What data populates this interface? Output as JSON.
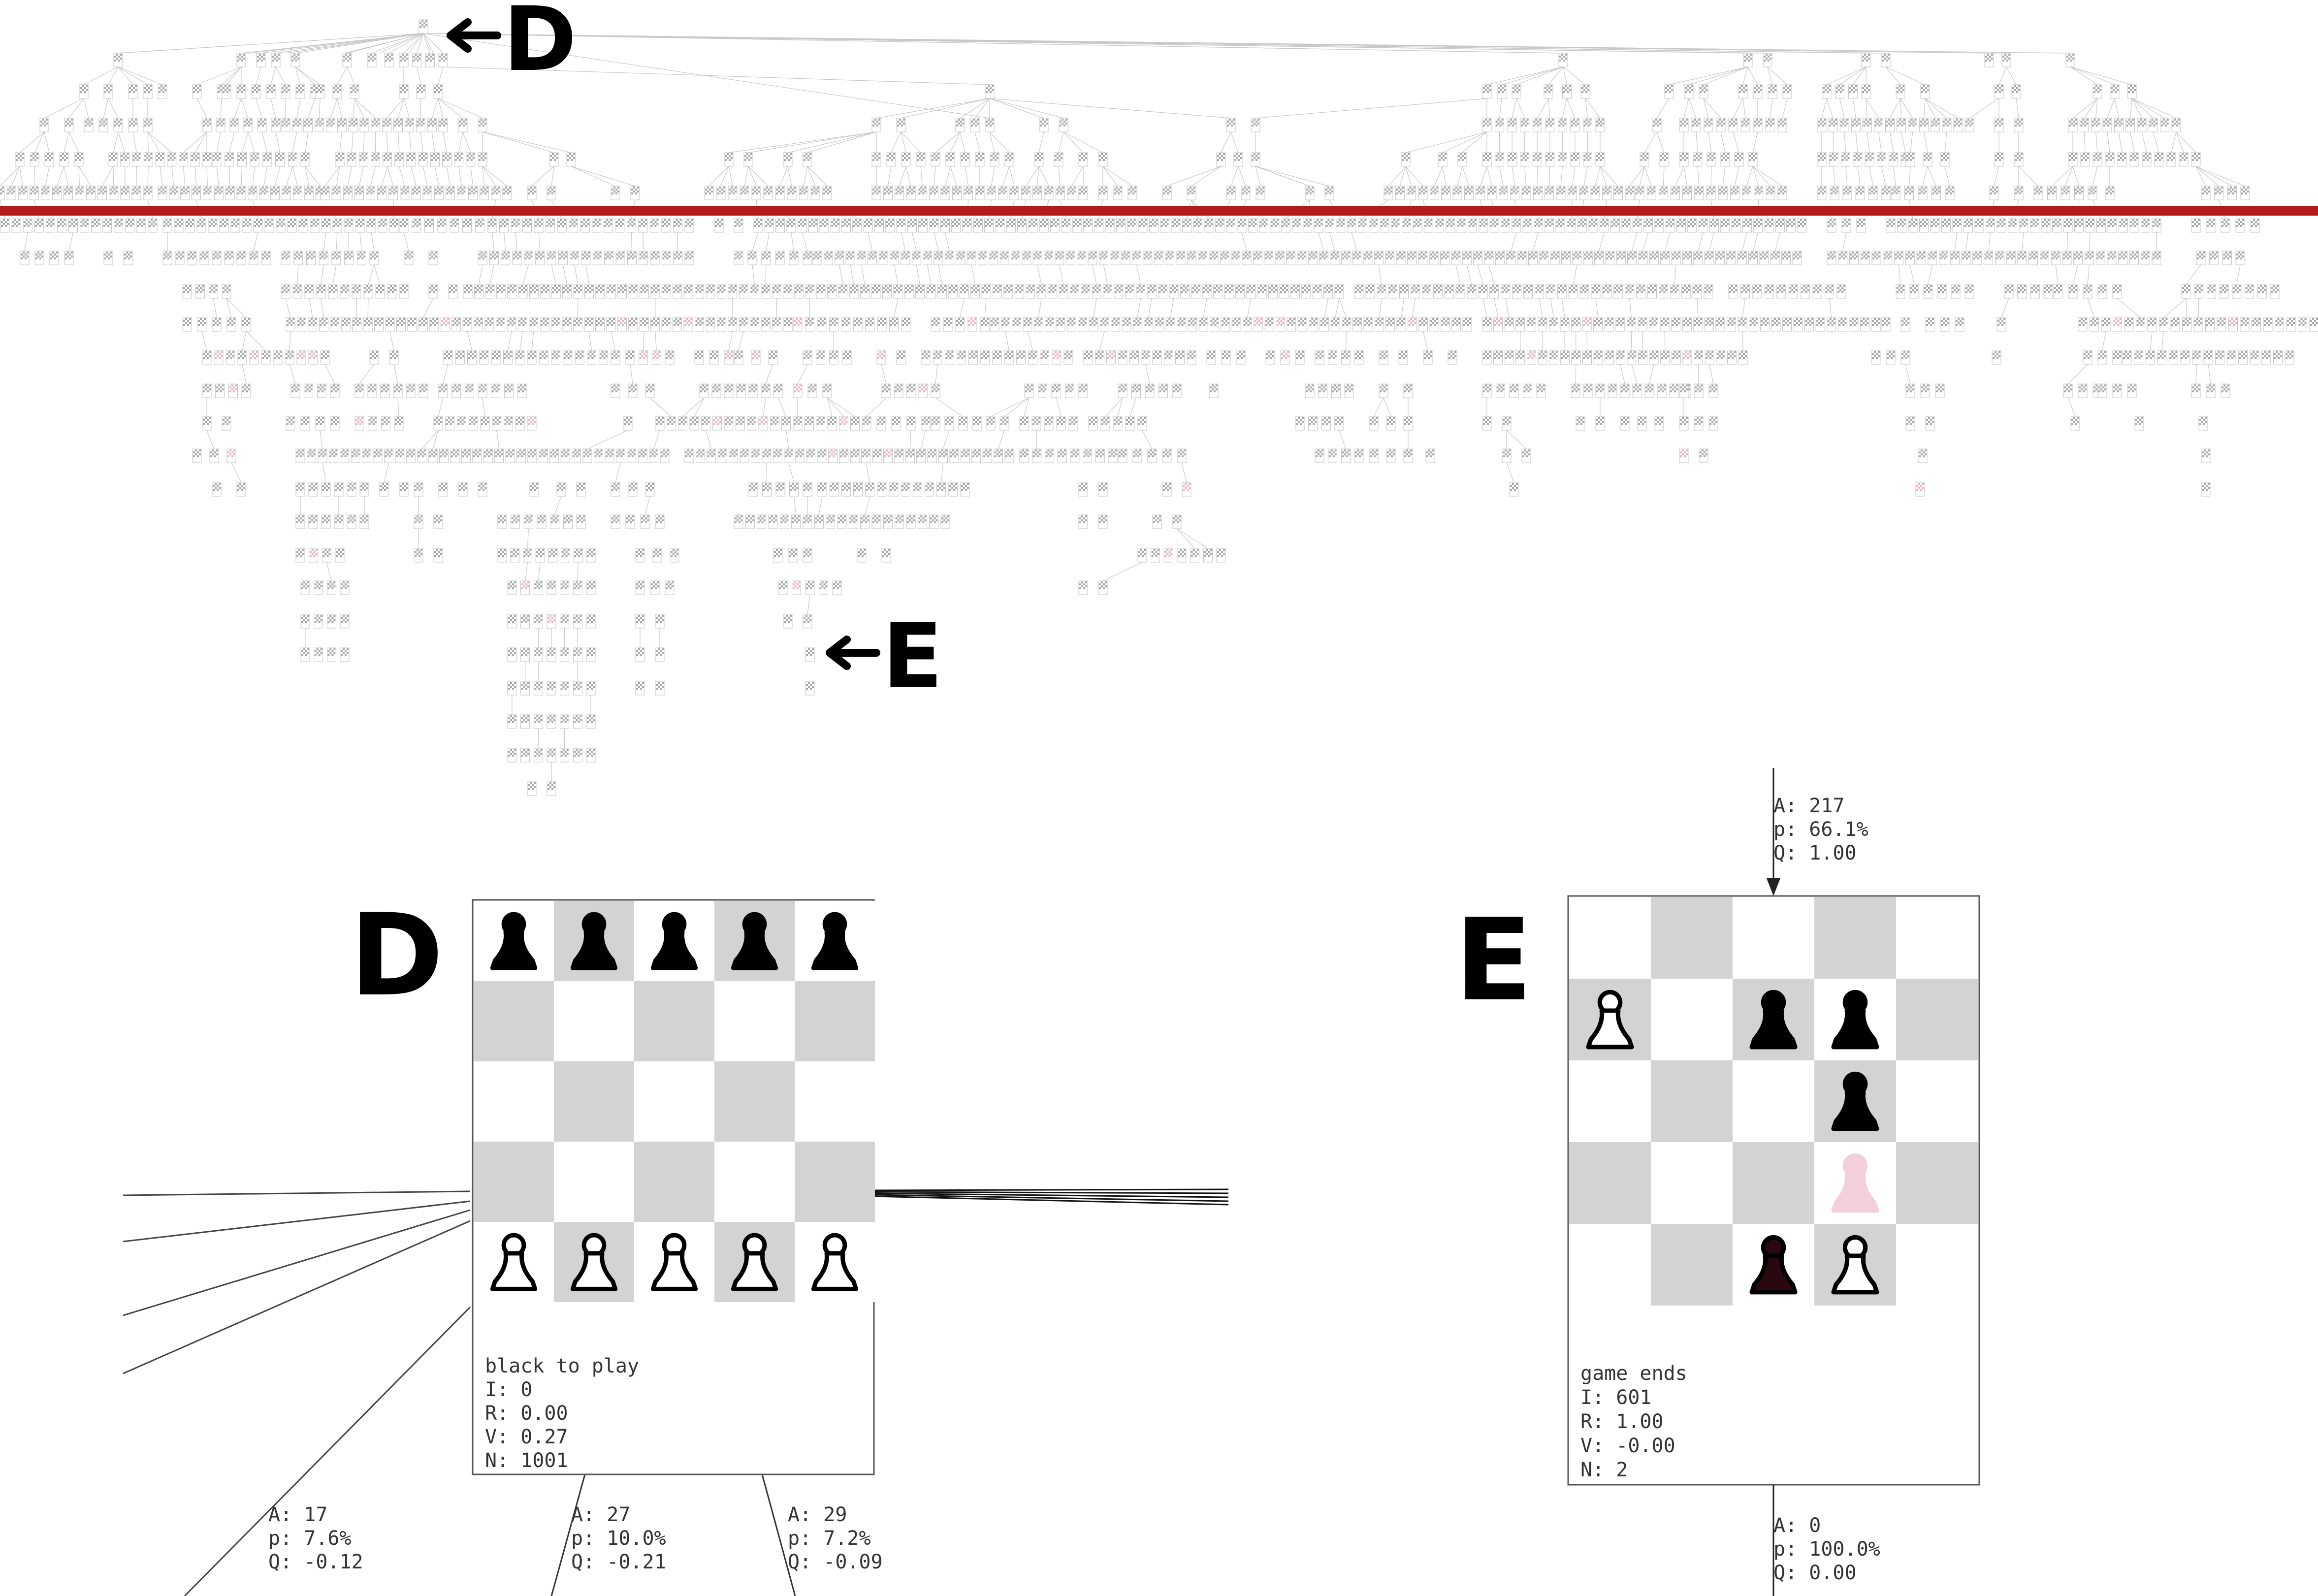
{
  "overview": {
    "marker_d": "D",
    "marker_e": "E"
  },
  "panel_d": {
    "label": "D",
    "status": "black to play",
    "stats": [
      "I: 0",
      "R: 0.00",
      "V: 0.27",
      "N: 1001"
    ],
    "board": [
      [
        "b",
        "b",
        "b",
        "b",
        "b"
      ],
      [
        "",
        "",
        "",
        "",
        ""
      ],
      [
        "",
        "",
        "",
        "",
        ""
      ],
      [
        "",
        "",
        "",
        "",
        ""
      ],
      [
        "w",
        "w",
        "w",
        "w",
        "w"
      ]
    ],
    "child_edges": [
      {
        "a": "A: 17",
        "p": "p: 7.6%",
        "q": "Q: -0.12"
      },
      {
        "a": "A: 27",
        "p": "p: 10.0%",
        "q": "Q: -0.21"
      },
      {
        "a": "A: 29",
        "p": "p: 7.2%",
        "q": "Q: -0.09"
      }
    ]
  },
  "panel_e": {
    "label": "E",
    "status": "game ends",
    "stats": [
      "I: 601",
      "R: 1.00",
      "V: -0.00",
      "N: 2"
    ],
    "board": [
      [
        "",
        "",
        "",
        "",
        ""
      ],
      [
        "w",
        "",
        "b",
        "b",
        ""
      ],
      [
        "",
        "",
        "",
        "b",
        ""
      ],
      [
        "",
        "",
        "",
        "g",
        ""
      ],
      [
        "",
        "",
        "r",
        "w",
        ""
      ]
    ],
    "incoming_edge": {
      "a": "A: 217",
      "p": "p: 66.1%",
      "q": "Q: 1.00"
    },
    "outgoing_edge": {
      "a": "A: 0",
      "p": "p: 100.0%",
      "q": "Q: 0.00"
    }
  },
  "colors": {
    "divider": "#b51a1a",
    "dark_square": "#d3d3d3",
    "light_square": "#ffffff",
    "node_outline": "#8a8a8a",
    "ghost_piece": "#f3cfd9",
    "highlight_piece": "#2a0810"
  }
}
